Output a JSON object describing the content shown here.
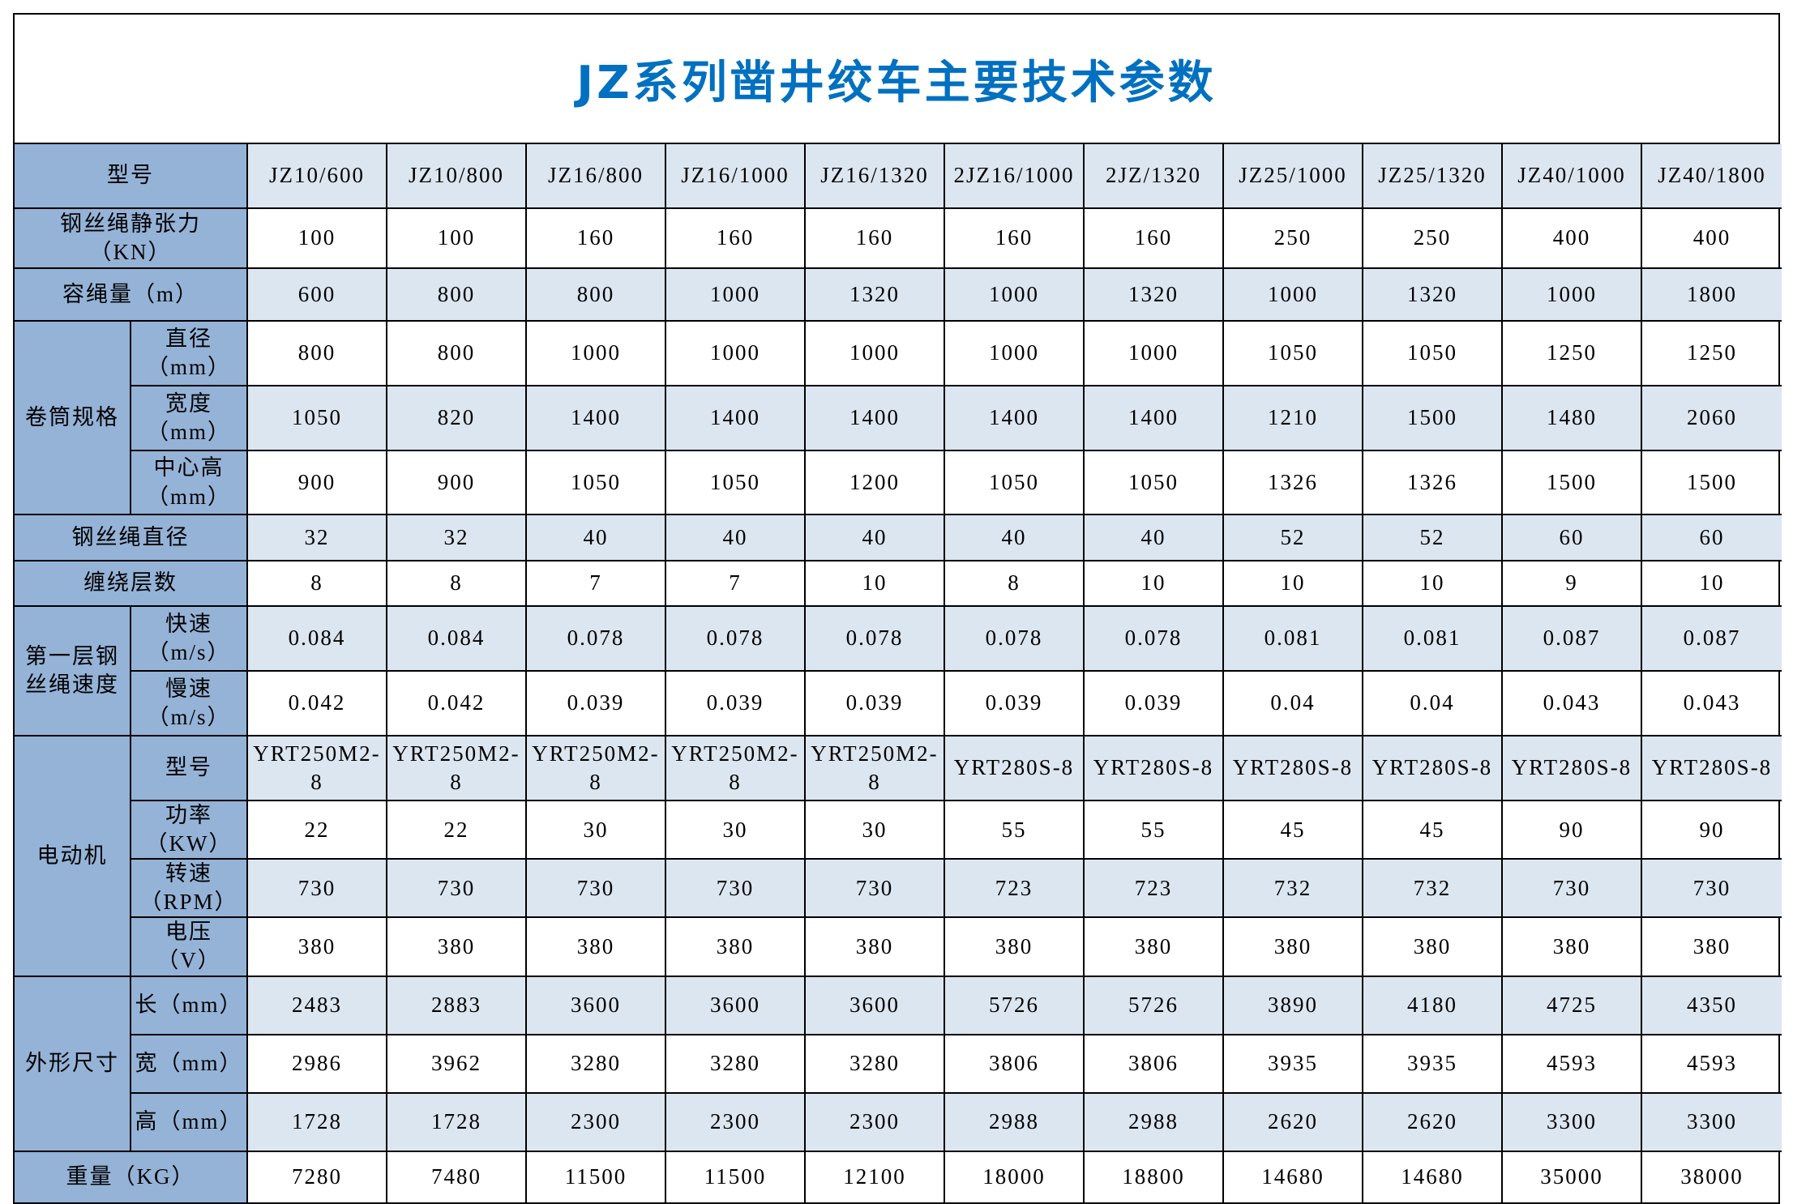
{
  "title": "JZ系列凿井绞车主要技术参数",
  "colors": {
    "title": "#0070c0",
    "label_bg": "#95b3d7",
    "alt_row_bg": "#dce6f1",
    "row_bg": "#ffffff"
  },
  "header_label": "型号",
  "models": [
    "JZ10/600",
    "JZ10/800",
    "JZ16/800",
    "JZ16/1000",
    "JZ16/1320",
    "2JZ16/1000",
    "2JZ/1320",
    "JZ25/1000",
    "JZ25/1320",
    "JZ40/1000",
    "JZ40/1800"
  ],
  "rows": [
    {
      "group": null,
      "label": "钢丝绳静张力\n（KN）",
      "values": [
        "100",
        "100",
        "160",
        "160",
        "160",
        "160",
        "160",
        "250",
        "250",
        "400",
        "400"
      ]
    },
    {
      "group": null,
      "label": "容绳量（m）",
      "values": [
        "600",
        "800",
        "800",
        "1000",
        "1320",
        "1000",
        "1320",
        "1000",
        "1320",
        "1000",
        "1800"
      ]
    },
    {
      "group": "卷筒规格",
      "label": "直径\n（mm）",
      "values": [
        "800",
        "800",
        "1000",
        "1000",
        "1000",
        "1000",
        "1000",
        "1050",
        "1050",
        "1250",
        "1250"
      ]
    },
    {
      "group": "卷筒规格",
      "label": "宽度\n（mm）",
      "values": [
        "1050",
        "820",
        "1400",
        "1400",
        "1400",
        "1400",
        "1400",
        "1210",
        "1500",
        "1480",
        "2060"
      ]
    },
    {
      "group": "卷筒规格",
      "label": "中心高\n（mm）",
      "values": [
        "900",
        "900",
        "1050",
        "1050",
        "1200",
        "1050",
        "1050",
        "1326",
        "1326",
        "1500",
        "1500"
      ]
    },
    {
      "group": null,
      "label": "钢丝绳直径",
      "values": [
        "32",
        "32",
        "40",
        "40",
        "40",
        "40",
        "40",
        "52",
        "52",
        "60",
        "60"
      ]
    },
    {
      "group": null,
      "label": "缠绕层数",
      "values": [
        "8",
        "8",
        "7",
        "7",
        "10",
        "8",
        "10",
        "10",
        "10",
        "9",
        "10"
      ]
    },
    {
      "group": "第一层钢\n丝绳速度",
      "label": "快速\n（m/s）",
      "values": [
        "0.084",
        "0.084",
        "0.078",
        "0.078",
        "0.078",
        "0.078",
        "0.078",
        "0.081",
        "0.081",
        "0.087",
        "0.087"
      ]
    },
    {
      "group": "第一层钢\n丝绳速度",
      "label": "慢速\n（m/s）",
      "values": [
        "0.042",
        "0.042",
        "0.039",
        "0.039",
        "0.039",
        "0.039",
        "0.039",
        "0.04",
        "0.04",
        "0.043",
        "0.043"
      ]
    },
    {
      "group": "电动机",
      "label": "型号",
      "values": [
        "YRT250M2-8",
        "YRT250M2-8",
        "YRT250M2-8",
        "YRT250M2-8",
        "YRT250M2-8",
        "YRT280S-8",
        "YRT280S-8",
        "YRT280S-8",
        "YRT280S-8",
        "YRT280S-8",
        "YRT280S-8"
      ]
    },
    {
      "group": "电动机",
      "label": "功率\n（KW）",
      "values": [
        "22",
        "22",
        "30",
        "30",
        "30",
        "55",
        "55",
        "45",
        "45",
        "90",
        "90"
      ]
    },
    {
      "group": "电动机",
      "label": "转速\n（RPM）",
      "values": [
        "730",
        "730",
        "730",
        "730",
        "730",
        "723",
        "723",
        "732",
        "732",
        "730",
        "730"
      ]
    },
    {
      "group": "电动机",
      "label": "电压\n（V）",
      "values": [
        "380",
        "380",
        "380",
        "380",
        "380",
        "380",
        "380",
        "380",
        "380",
        "380",
        "380"
      ]
    },
    {
      "group": "外形尺寸",
      "label": "长（mm）",
      "values": [
        "2483",
        "2883",
        "3600",
        "3600",
        "3600",
        "5726",
        "5726",
        "3890",
        "4180",
        "4725",
        "4350"
      ]
    },
    {
      "group": "外形尺寸",
      "label": "宽（mm）",
      "values": [
        "2986",
        "3962",
        "3280",
        "3280",
        "3280",
        "3806",
        "3806",
        "3935",
        "3935",
        "4593",
        "4593"
      ]
    },
    {
      "group": "外形尺寸",
      "label": "高（mm）",
      "values": [
        "1728",
        "1728",
        "2300",
        "2300",
        "2300",
        "2988",
        "2988",
        "2620",
        "2620",
        "3300",
        "3300"
      ]
    },
    {
      "group": null,
      "label": "重量（KG）",
      "values": [
        "7280",
        "7480",
        "11500",
        "11500",
        "12100",
        "18000",
        "18800",
        "14680",
        "14680",
        "35000",
        "38000"
      ]
    }
  ]
}
